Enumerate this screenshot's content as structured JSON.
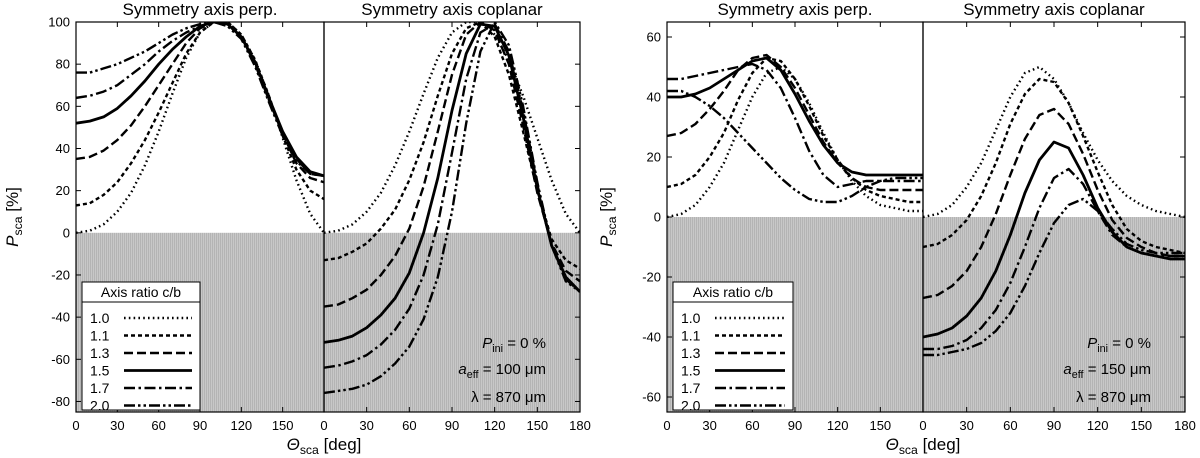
{
  "chart_data": [
    {
      "type": "line",
      "panel_title_left": "Symmetry axis perp.",
      "panel_title_right": "Symmetry axis coplanar",
      "ylabel": "P",
      "ylabel_sub": "sca",
      "ylabel_unit": " [%]",
      "xlabel": "Θ",
      "xlabel_sub": "sca",
      "xlabel_unit": " [deg]",
      "ylim": [
        -85,
        100
      ],
      "yticks": [
        -80,
        -60,
        -40,
        -20,
        0,
        20,
        40,
        60,
        80,
        100
      ],
      "xlim_left": [
        0,
        180
      ],
      "xticks_left": [
        0,
        30,
        60,
        90,
        120,
        150
      ],
      "xlim_right": [
        0,
        180
      ],
      "xticks_right": [
        0,
        30,
        60,
        90,
        120,
        150,
        180
      ],
      "negative_shaded": true,
      "legend_title": "Axis ratio c/b",
      "annotation_pini": "P",
      "annotation_pini_sub": "ini",
      "annotation_pini_value": " = 0 %",
      "annotation_aeff": "a",
      "annotation_aeff_sub": "eff",
      "annotation_aeff_value": " = 100 μm",
      "annotation_aeff_color": "#1a9e9e",
      "annotation_lambda": "λ = 870 μm",
      "x": [
        0,
        10,
        20,
        30,
        40,
        50,
        60,
        70,
        80,
        90,
        100,
        110,
        120,
        130,
        140,
        150,
        160,
        170,
        180
      ],
      "series": [
        {
          "name": "1.0",
          "style": "dotted",
          "left": [
            0,
            1,
            4,
            10,
            19,
            32,
            48,
            66,
            83,
            95,
            100,
            100,
            94,
            82,
            65,
            45,
            25,
            9,
            0
          ],
          "right": [
            0,
            1,
            4,
            10,
            19,
            32,
            48,
            66,
            83,
            95,
            100,
            100,
            94,
            82,
            65,
            45,
            25,
            9,
            0
          ]
        },
        {
          "name": "1.1",
          "style": "short-dash",
          "left": [
            13,
            14,
            18,
            24,
            33,
            44,
            57,
            71,
            85,
            95,
            100,
            100,
            94,
            82,
            65,
            46,
            30,
            20,
            16
          ],
          "right": [
            -13,
            -12,
            -9,
            -5,
            2,
            11,
            25,
            43,
            65,
            85,
            97,
            100,
            93,
            75,
            48,
            20,
            -3,
            -13,
            -17
          ]
        },
        {
          "name": "1.3",
          "style": "dash",
          "left": [
            35,
            36,
            39,
            44,
            51,
            60,
            70,
            80,
            90,
            97,
            100,
            99,
            93,
            81,
            64,
            47,
            33,
            26,
            24
          ],
          "right": [
            -35,
            -34,
            -31,
            -27,
            -20,
            -11,
            2,
            22,
            48,
            75,
            94,
            100,
            96,
            80,
            51,
            19,
            -5,
            -18,
            -23
          ]
        },
        {
          "name": "1.5",
          "style": "solid",
          "left": [
            52,
            53,
            55,
            59,
            65,
            72,
            80,
            87,
            93,
            98,
            100,
            99,
            93,
            81,
            64,
            48,
            36,
            29,
            27
          ],
          "right": [
            -52,
            -51,
            -49,
            -45,
            -39,
            -31,
            -19,
            0,
            26,
            58,
            85,
            99,
            98,
            84,
            55,
            21,
            -6,
            -21,
            -28
          ]
        },
        {
          "name": "1.7",
          "style": "dash-dot",
          "left": [
            64,
            65,
            67,
            70,
            75,
            80,
            86,
            91,
            95,
            98,
            100,
            99,
            93,
            80,
            63,
            47,
            35,
            28,
            27
          ],
          "right": [
            -64,
            -63,
            -61,
            -58,
            -53,
            -46,
            -36,
            -20,
            4,
            38,
            73,
            95,
            99,
            86,
            58,
            23,
            -6,
            -22,
            -28
          ]
        },
        {
          "name": "2.0",
          "style": "dash-dot-dot",
          "left": [
            76,
            76,
            78,
            80,
            83,
            86,
            90,
            94,
            97,
            99,
            100,
            98,
            92,
            79,
            62,
            46,
            34,
            28,
            27
          ],
          "right": [
            -76,
            -75,
            -74,
            -72,
            -68,
            -62,
            -54,
            -41,
            -21,
            10,
            52,
            86,
            100,
            89,
            60,
            24,
            -6,
            -23,
            -28
          ]
        }
      ]
    },
    {
      "type": "line",
      "panel_title_left": "Symmetry axis perp.",
      "panel_title_right": "Symmetry axis coplanar",
      "ylabel": "P",
      "ylabel_sub": "sca",
      "ylabel_unit": " [%]",
      "xlabel": "Θ",
      "xlabel_sub": "sca",
      "xlabel_unit": " [deg]",
      "ylim": [
        -65,
        65
      ],
      "yticks": [
        -60,
        -40,
        -20,
        0,
        20,
        40,
        60
      ],
      "xlim_left": [
        0,
        180
      ],
      "xticks_left": [
        0,
        30,
        60,
        90,
        120,
        150
      ],
      "xlim_right": [
        0,
        180
      ],
      "xticks_right": [
        0,
        30,
        60,
        90,
        120,
        150,
        180
      ],
      "negative_shaded": true,
      "legend_title": "Axis ratio c/b",
      "annotation_pini": "P",
      "annotation_pini_sub": "ini",
      "annotation_pini_value": " = 0 %",
      "annotation_aeff": "a",
      "annotation_aeff_sub": "eff",
      "annotation_aeff_value": " = 150 μm",
      "annotation_aeff_color": "#e020e0",
      "annotation_lambda": "λ = 870 μm",
      "x": [
        0,
        10,
        20,
        30,
        40,
        50,
        60,
        70,
        80,
        90,
        100,
        110,
        120,
        130,
        140,
        150,
        160,
        170,
        180
      ],
      "series": [
        {
          "name": "1.0",
          "style": "dotted",
          "left": [
            0,
            1,
            4,
            10,
            18,
            29,
            40,
            48,
            50,
            46,
            38,
            28,
            19,
            12,
            7,
            4,
            3,
            2,
            2
          ],
          "right": [
            0,
            1,
            4,
            10,
            18,
            29,
            40,
            48,
            50,
            46,
            38,
            28,
            19,
            12,
            7,
            4,
            2,
            1,
            0
          ]
        },
        {
          "name": "1.1",
          "style": "short-dash",
          "left": [
            10,
            11,
            14,
            20,
            28,
            39,
            48,
            53,
            52,
            46,
            37,
            27,
            19,
            13,
            9,
            7,
            6,
            5,
            5
          ],
          "right": [
            -10,
            -9,
            -6,
            -1,
            7,
            18,
            31,
            41,
            46,
            45,
            38,
            27,
            15,
            4,
            -4,
            -8,
            -10,
            -11,
            -12
          ]
        },
        {
          "name": "1.3",
          "style": "dash",
          "left": [
            27,
            28,
            31,
            36,
            42,
            49,
            53,
            54,
            50,
            43,
            34,
            25,
            18,
            13,
            10,
            9,
            9,
            9,
            9
          ]
        },
        {
          "name": "1.5",
          "style": "solid",
          "left": [
            40,
            40,
            41,
            43,
            46,
            49,
            52,
            53,
            49,
            41,
            32,
            24,
            18,
            15,
            14,
            14,
            14,
            14,
            14
          ]
        },
        {
          "name": "1.7",
          "style": "dash-dot",
          "left": [
            46,
            46,
            47,
            48,
            49,
            50,
            51,
            49,
            43,
            33,
            22,
            14,
            10,
            11,
            12,
            12,
            12,
            12,
            12
          ]
        },
        {
          "name": "2.0",
          "style": "dash-dot-dot",
          "left": [
            42,
            42,
            40,
            37,
            33,
            28,
            23,
            18,
            13,
            9,
            6,
            5,
            5,
            7,
            10,
            12,
            13,
            13,
            13
          ]
        }
      ],
      "right_extra": [
        {
          "name": "1.3",
          "style": "dash",
          "values": [
            -27,
            -26,
            -23,
            -18,
            -10,
            1,
            14,
            26,
            34,
            36,
            31,
            21,
            9,
            -1,
            -7,
            -10,
            -12,
            -13,
            -13
          ]
        },
        {
          "name": "1.5",
          "style": "solid",
          "values": [
            -40,
            -39,
            -37,
            -33,
            -27,
            -18,
            -6,
            8,
            19,
            25,
            23,
            14,
            3,
            -5,
            -10,
            -12,
            -13,
            -14,
            -14
          ]
        },
        {
          "name": "1.7",
          "style": "dash-dot",
          "values": [
            -44,
            -44,
            -43,
            -41,
            -37,
            -31,
            -22,
            -10,
            3,
            13,
            16,
            11,
            2,
            -6,
            -10,
            -12,
            -13,
            -13,
            -13
          ]
        },
        {
          "name": "2.0",
          "style": "dash-dot-dot",
          "values": [
            -46,
            -46,
            -45,
            -44,
            -42,
            -38,
            -32,
            -23,
            -12,
            -2,
            4,
            6,
            2,
            -4,
            -9,
            -11,
            -12,
            -12,
            -12
          ]
        }
      ]
    }
  ]
}
